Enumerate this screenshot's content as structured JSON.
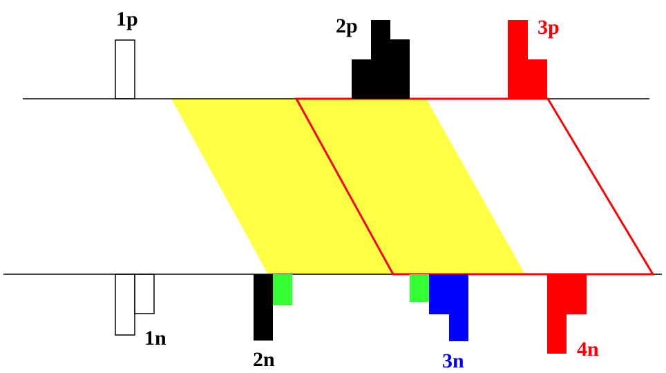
{
  "labels": {
    "p1": "1p",
    "p2": "2p",
    "p3": "3p",
    "n1": "1n",
    "n2": "2n",
    "n3": "3n",
    "n4": "4n"
  },
  "colors": {
    "background": "#ffffff",
    "line": "#000000",
    "black_block": "#000000",
    "red": "#ff0000",
    "yellow_band": "#ffff44",
    "green": "#33ff33",
    "blue": "#0000ff"
  }
}
